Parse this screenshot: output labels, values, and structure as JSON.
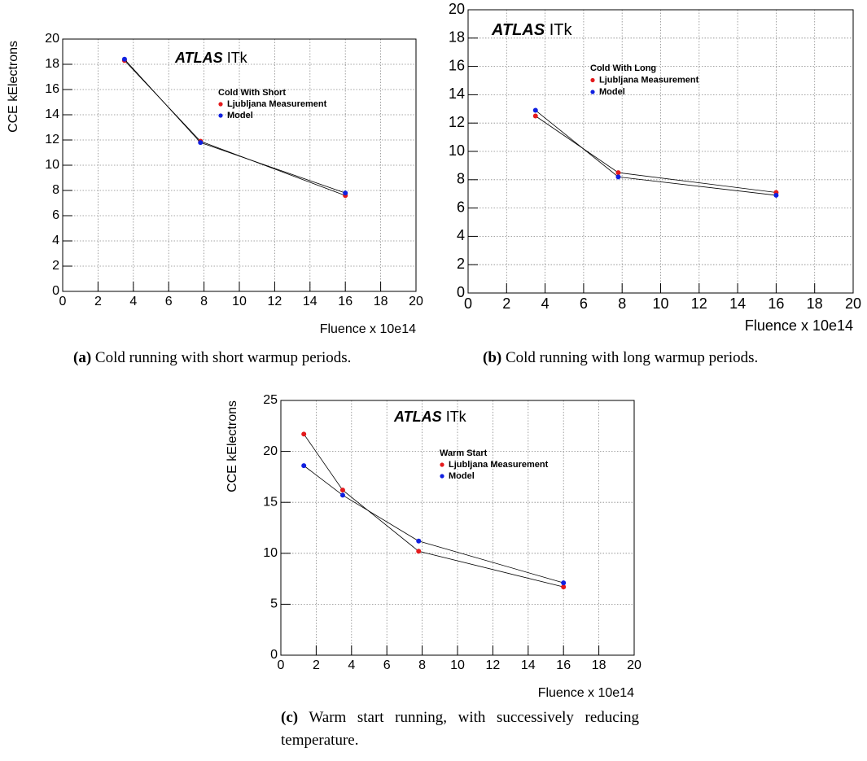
{
  "chart_data": [
    {
      "type": "line",
      "annotation_bold": "ATLAS",
      "annotation": "ITk",
      "legend_title": "Cold With Short",
      "x_label": "Fluence x 10e14",
      "y_label": "CCE kElectrons",
      "x": [
        3.5,
        7.8,
        16
      ],
      "series": [
        {
          "name": "Ljubljana Measurement",
          "color": "#e41a1c",
          "values": [
            18.3,
            11.9,
            7.6
          ]
        },
        {
          "name": "Model",
          "color": "#1020e0",
          "values": [
            18.4,
            11.8,
            7.8
          ]
        }
      ],
      "xlim": [
        0,
        20
      ],
      "xticks": [
        0,
        2,
        4,
        6,
        8,
        10,
        12,
        14,
        16,
        18,
        20
      ],
      "ylim": [
        0,
        20
      ],
      "yticks": [
        0,
        2,
        4,
        6,
        8,
        10,
        12,
        14,
        16,
        18,
        20
      ],
      "grid": true,
      "caption_label": "(a)",
      "caption": "Cold running with short warmup periods."
    },
    {
      "type": "line",
      "annotation_bold": "ATLAS",
      "annotation": "ITk",
      "legend_title": "Cold With Long",
      "x_label": "Fluence x 10e14",
      "x": [
        3.5,
        7.8,
        16
      ],
      "series": [
        {
          "name": "Ljubljana Measurement",
          "color": "#e41a1c",
          "values": [
            12.5,
            8.5,
            7.1
          ]
        },
        {
          "name": "Model",
          "color": "#1020e0",
          "values": [
            12.9,
            8.2,
            6.9
          ]
        }
      ],
      "xlim": [
        0,
        20
      ],
      "xticks": [
        0,
        2,
        4,
        6,
        8,
        10,
        12,
        14,
        16,
        18,
        20
      ],
      "ylim": [
        0,
        20
      ],
      "yticks": [
        0,
        2,
        4,
        6,
        8,
        10,
        12,
        14,
        16,
        18,
        20
      ],
      "grid": true,
      "caption_label": "(b)",
      "caption": "Cold running with long warmup periods."
    },
    {
      "type": "line",
      "annotation_bold": "ATLAS",
      "annotation": "ITk",
      "legend_title": "Warm Start",
      "x_label": "Fluence x 10e14",
      "y_label": "CCE kElectrons",
      "x": [
        1.3,
        3.5,
        7.8,
        16
      ],
      "series": [
        {
          "name": "Ljubljana Measurement",
          "color": "#e41a1c",
          "values": [
            21.7,
            16.2,
            10.2,
            6.7
          ]
        },
        {
          "name": "Model",
          "color": "#1020e0",
          "values": [
            18.6,
            15.7,
            11.2,
            7.1
          ]
        }
      ],
      "xlim": [
        0,
        20
      ],
      "xticks": [
        0,
        2,
        4,
        6,
        8,
        10,
        12,
        14,
        16,
        18,
        20
      ],
      "ylim": [
        0,
        25
      ],
      "yticks": [
        0,
        5,
        10,
        15,
        20,
        25
      ],
      "grid": true,
      "caption_label": "(c)",
      "caption": "Warm start running, with successively reducing temperature."
    }
  ]
}
